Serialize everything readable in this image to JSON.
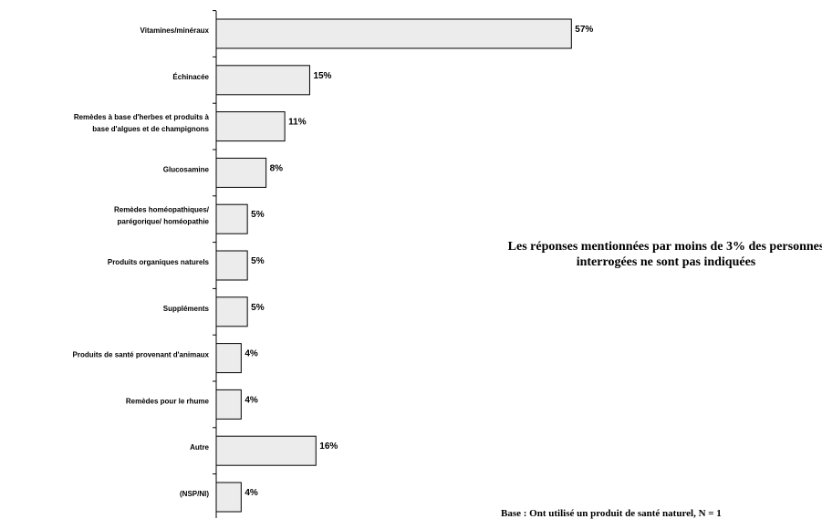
{
  "chart_data": {
    "type": "bar",
    "orientation": "horizontal",
    "categories": [
      "Vitamines/minéraux",
      "Échinacée",
      "Remèdes à base d'herbes et produits à base d'algues et de champignons",
      "Glucosamine",
      "Remèdes homéopathiques/ parégorique/ homéopathie",
      "Produits organiques naturels",
      "Suppléments",
      "Produits de santé provenant d'animaux",
      "Remèdes pour le rhume",
      "Autre",
      "(NSP/NI)"
    ],
    "category_lines": [
      [
        "Vitamines/minéraux"
      ],
      [
        "Échinacée"
      ],
      [
        "Remèdes à base d'herbes et produits à",
        "base d'algues et de champignons"
      ],
      [
        "Glucosamine"
      ],
      [
        "Remèdes homéopathiques/",
        "parégorique/ homéopathie"
      ],
      [
        "Produits organiques naturels"
      ],
      [
        "Suppléments"
      ],
      [
        "Produits de santé provenant d'animaux"
      ],
      [
        "Remèdes pour le rhume"
      ],
      [
        "Autre"
      ],
      [
        "(NSP/NI)"
      ]
    ],
    "values": [
      57,
      15,
      11,
      8,
      5,
      5,
      5,
      4,
      4,
      16,
      4
    ],
    "value_labels": [
      "57%",
      "15%",
      "11%",
      "8%",
      "5%",
      "5%",
      "5%",
      "4%",
      "4%",
      "16%",
      "4%"
    ],
    "xlim": [
      0,
      60
    ],
    "grid": false,
    "bar_color": "#ececec",
    "bar_edge_color": "#000000"
  },
  "note": "Les réponses mentionnées par moins de 3% des personnes interrogées ne sont pas indiquées",
  "base_text": "Base : Ont utilisé un produit de santé naturel, N = 1"
}
